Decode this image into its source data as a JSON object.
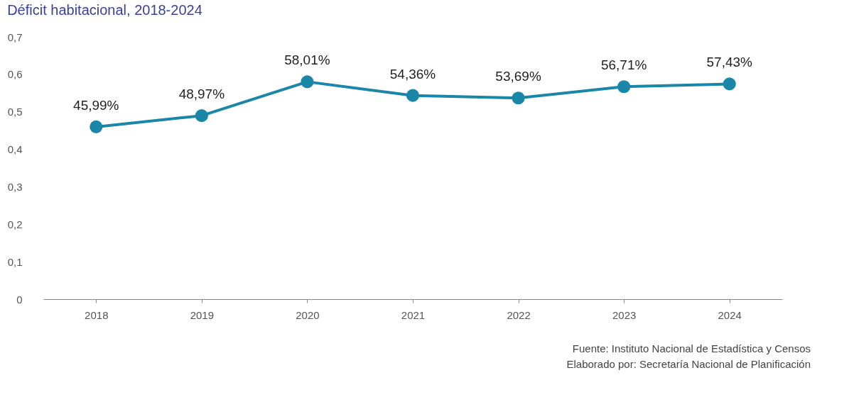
{
  "chart_data": {
    "type": "line",
    "title": "Déficit habitacional, 2018-2024",
    "categories": [
      "2018",
      "2019",
      "2020",
      "2021",
      "2022",
      "2023",
      "2024"
    ],
    "series": [
      {
        "color": "#1b87a8",
        "values": [
          0.4599,
          0.4897,
          0.5801,
          0.5436,
          0.5369,
          0.5671,
          0.5743
        ],
        "value_labels": [
          "45,99%",
          "48,97%",
          "58,01%",
          "54,36%",
          "53,69%",
          "56,71%",
          "57,43%"
        ]
      }
    ],
    "ylim": [
      0,
      0.7
    ],
    "yticks": [
      0,
      {
        "value": 0.1,
        "label": "0,1"
      },
      {
        "value": 0.2,
        "label": "0,2"
      },
      {
        "value": 0.3,
        "label": "0,3"
      },
      {
        "value": 0.4,
        "label": "0,4"
      },
      {
        "value": 0.5,
        "label": "0,5"
      },
      {
        "value": 0.6,
        "label": "0,6"
      },
      {
        "value": 0.7,
        "label": "0,7"
      }
    ],
    "grid": false,
    "marker": "circle",
    "line_style": "solid",
    "annotations": [
      "Fuente: Instituto Nacional de Estadística y Censos",
      "Elaborado por: Secretaría Nacional de Planificación"
    ]
  }
}
